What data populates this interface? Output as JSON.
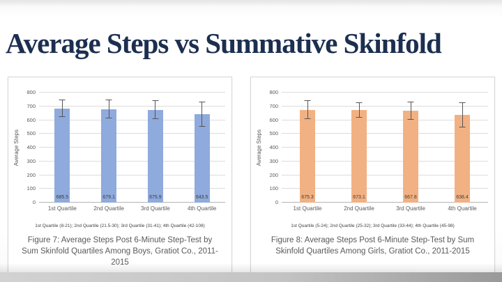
{
  "slide": {
    "title": "Average Steps vs Summative Skinfold"
  },
  "chart_data": [
    {
      "type": "bar",
      "group": "boys",
      "categories": [
        "1st Quartile",
        "2nd Quartile",
        "3rd Quartile",
        "4th Quartile"
      ],
      "values": [
        685.5,
        679.1,
        675.9,
        643.5
      ],
      "errors": [
        65,
        68,
        69,
        90
      ],
      "bar_color": "#8FAADC",
      "ylabel": "Average Steps",
      "ylim": [
        0,
        800
      ],
      "ytick_step": 100,
      "grid": true,
      "quartile_note": "1st Quartile (8-21); 2nd Quartile (21.5-30); 3rd Quartile (31-41); 4th Quartile (42-108)",
      "caption": "Figure 7: Average Steps Post 6-Minute Step-Test by Sum Skinfold Quartiles Among Boys, Gratiot Co., 2011-2015"
    },
    {
      "type": "bar",
      "group": "girls",
      "categories": [
        "1st Quartile",
        "2nd Quartile",
        "3rd Quartile",
        "4th Quartile"
      ],
      "values": [
        675.3,
        673.1,
        667.8,
        638.4
      ],
      "errors": [
        70,
        55,
        66,
        90
      ],
      "bar_color": "#F2B183",
      "ylabel": "Average Steps",
      "ylim": [
        0,
        800
      ],
      "ytick_step": 100,
      "grid": true,
      "quartile_note": "1st Quartile (5-24); 2nd Quartile (25-32); 3rd Quartile (33-44); 4th Quartile (45-98)",
      "caption": "Figure 8: Average Steps Post 6-Minute Step-Test by Sum Skinfold Quartiles Among Girls, Gratiot Co., 2011-2015"
    }
  ]
}
